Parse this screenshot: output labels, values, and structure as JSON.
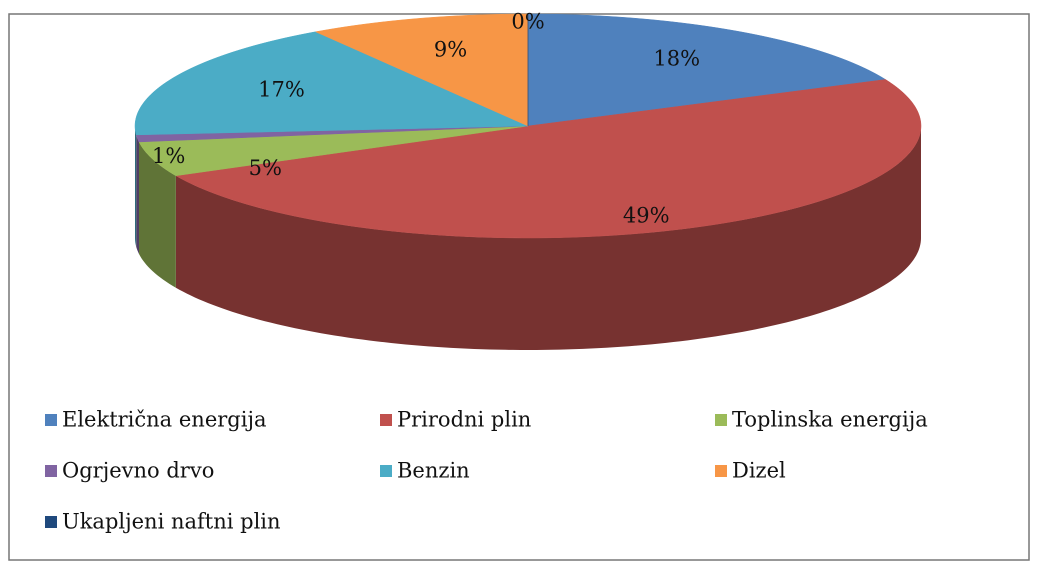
{
  "chart_data": {
    "type": "pie",
    "categories": [
      "Električna energija",
      "Prirodni plin",
      "Toplinska energija",
      "Ogrjevno drvo",
      "Benzin",
      "Dizel",
      "Ukapljeni naftni plin"
    ],
    "values": [
      18,
      49,
      5,
      1,
      17,
      9,
      0
    ],
    "value_labels": [
      "18%",
      "49%",
      "5%",
      "1%",
      "17%",
      "9%",
      "0%"
    ],
    "colors": [
      "#4f81bd",
      "#c0504d",
      "#9bbb59",
      "#8064a2",
      "#4bacc6",
      "#f79646",
      "#1f497d"
    ],
    "legend": "bottom"
  }
}
